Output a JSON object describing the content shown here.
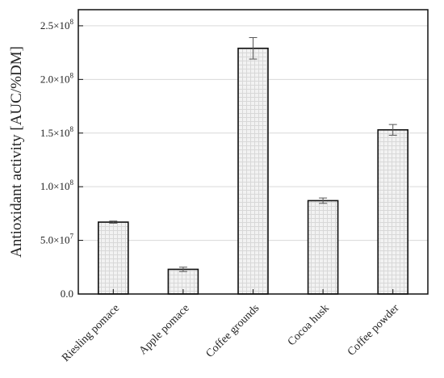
{
  "chart_data": {
    "type": "bar",
    "title": "",
    "xlabel": "",
    "ylabel": "Antioxidant activity [AUC/%DM]",
    "categories": [
      "Riesling pomace",
      "Apple pomace",
      "Coffee grounds",
      "Cocoa husk",
      "Coffee powder"
    ],
    "values": [
      67000000,
      23000000,
      229000000,
      87000000,
      153000000
    ],
    "errors": [
      1000000,
      2000000,
      10000000,
      2500000,
      5000000
    ],
    "ylim": [
      0,
      265000000
    ],
    "yticks": [
      0,
      50000000,
      100000000,
      150000000,
      200000000,
      250000000
    ],
    "ytick_labels": [
      {
        "base": "0.0",
        "exp": ""
      },
      {
        "base": "5.0×10",
        "exp": "7"
      },
      {
        "base": "1.0×10",
        "exp": "8"
      },
      {
        "base": "1.5×10",
        "exp": "8"
      },
      {
        "base": "2.0×10",
        "exp": "8"
      },
      {
        "base": "2.5×10",
        "exp": "8"
      }
    ],
    "grid": true,
    "bar_fill": "#f2f2f2",
    "bar_pattern": "#d8d8d8",
    "bar_stroke": "#111111",
    "grid_color": "#d9d9d9",
    "error_color": "#555555"
  }
}
